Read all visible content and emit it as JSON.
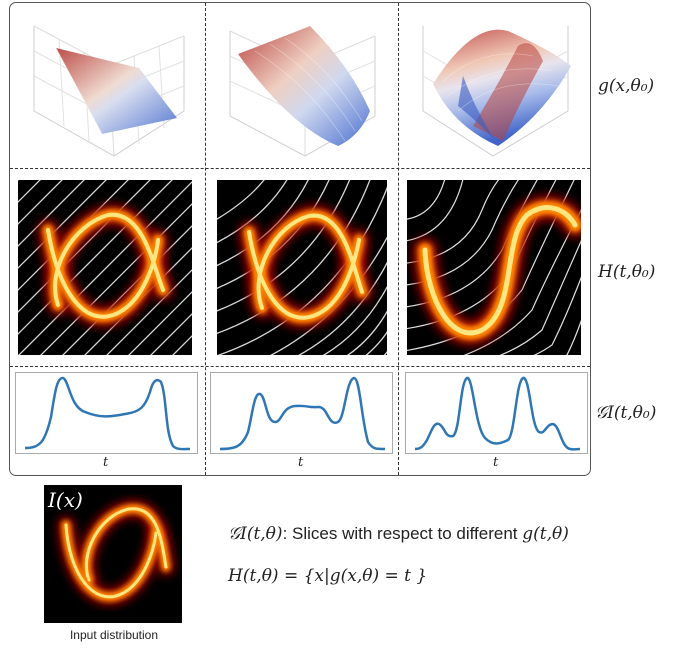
{
  "rows": [
    {
      "label": "g(x,θ₀)"
    },
    {
      "label": "H(t,θ₀)"
    },
    {
      "label": "𝒢I(t,θ₀)"
    }
  ],
  "axis_label": "t",
  "input": {
    "title": "I(x)",
    "caption": "Input distribution"
  },
  "legend": {
    "line1_symbol": "𝒢I(t,θ)",
    "line1_text": ": Slices with respect to different ",
    "line1_symbol2": "g(t,θ)",
    "line2": "H(t,θ) = {x|g(x,θ) = t }"
  },
  "colors": {
    "curve": "#2f77b4",
    "heat_core": "#ffe680",
    "heat_mid": "#ff8800",
    "heat_edge": "#b01000",
    "contour": "#e8e8e8",
    "surface_hot": "#c0504d",
    "surface_cold": "#5b7fd6"
  }
}
